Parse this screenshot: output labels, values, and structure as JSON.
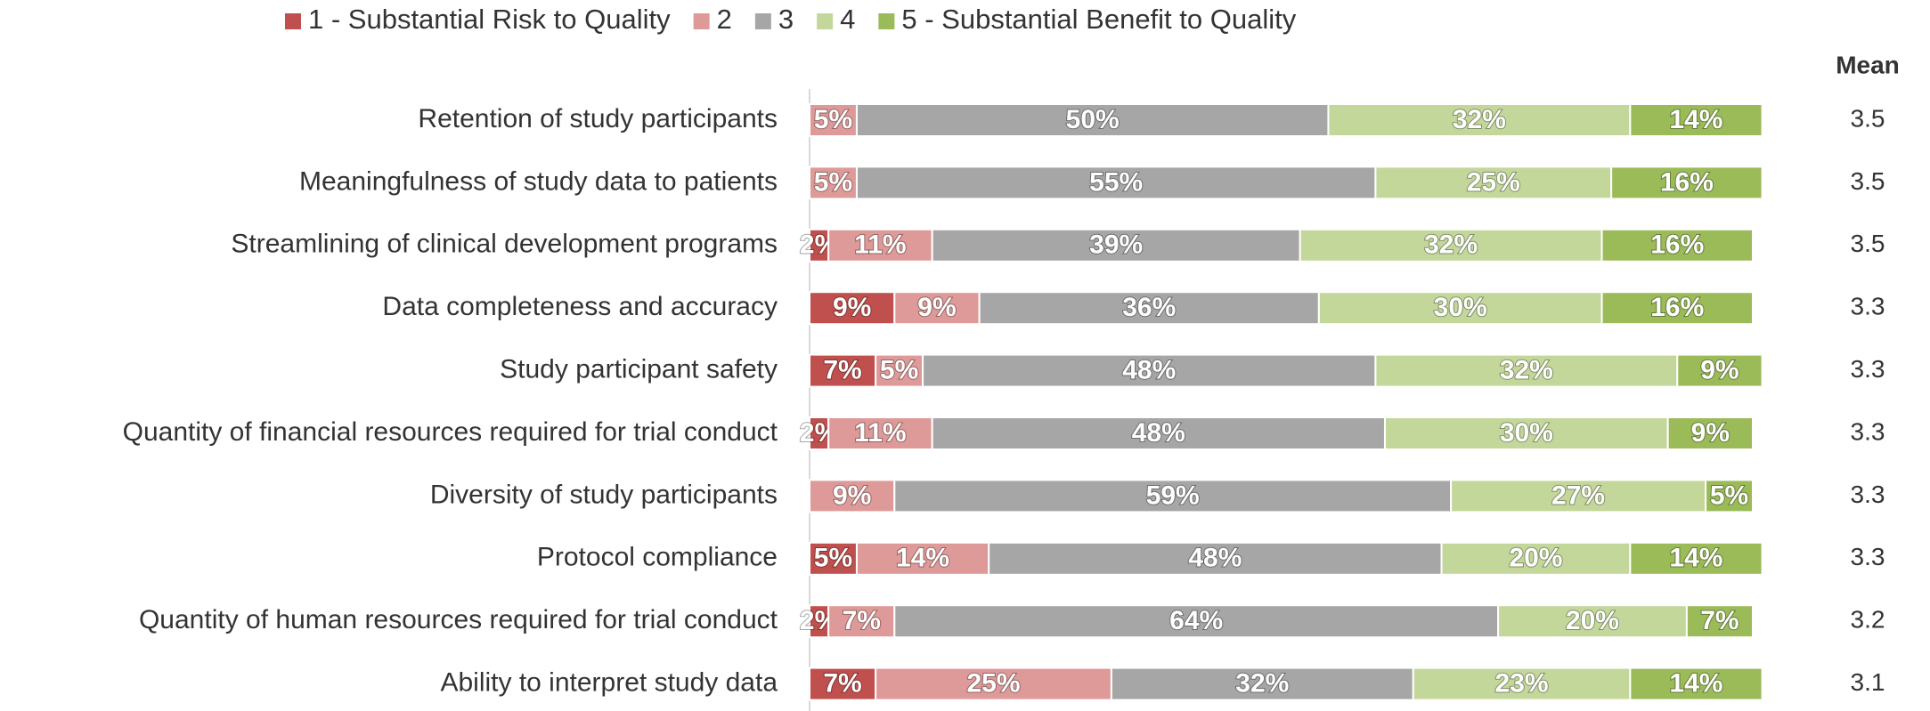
{
  "chart_data": {
    "type": "stacked_barh",
    "categories": [
      "Retention of study participants",
      "Meaningfulness of study data to patients",
      "Streamlining of clinical development programs",
      "Data completeness and accuracy",
      "Study participant safety",
      "Quantity of financial resources required for trial conduct",
      "Diversity of study participants",
      "Protocol compliance",
      "Quantity of human resources required for trial conduct",
      "Ability to interpret study data"
    ],
    "series": [
      {
        "name": "1 - Substantial Risk to Quality",
        "color": "#c0504d",
        "values": [
          null,
          null,
          2,
          9,
          7,
          2,
          null,
          5,
          2,
          7
        ],
        "value_labels": [
          null,
          null,
          "2%",
          "9%",
          "7%",
          "2%",
          null,
          "5%",
          "2%",
          "7%"
        ]
      },
      {
        "name": "2",
        "color": "#dd9a98",
        "values": [
          5,
          5,
          11,
          9,
          5,
          11,
          9,
          14,
          7,
          25
        ],
        "value_labels": [
          "5%",
          "5%",
          "11%",
          "9%",
          "5%",
          "11%",
          "9%",
          "14%",
          "7%",
          "25%"
        ]
      },
      {
        "name": "3",
        "color": "#a6a6a6",
        "values": [
          50,
          55,
          39,
          36,
          48,
          48,
          59,
          48,
          64,
          32
        ],
        "value_labels": [
          "50%",
          "55%",
          "39%",
          "36%",
          "48%",
          "48%",
          "59%",
          "48%",
          "64%",
          "32%"
        ]
      },
      {
        "name": "4",
        "color": "#c4d79b",
        "values": [
          32,
          25,
          32,
          30,
          32,
          30,
          27,
          20,
          20,
          23
        ],
        "value_labels": [
          "32%",
          "25%",
          "32%",
          "30%",
          "32%",
          "30%",
          "27%",
          "20%",
          "20%",
          "23%"
        ]
      },
      {
        "name": "5 - Substantial Benefit to Quality",
        "color": "#9bbb59",
        "values": [
          14,
          16,
          16,
          16,
          9,
          9,
          5,
          14,
          7,
          14
        ],
        "value_labels": [
          "14%",
          "16%",
          "16%",
          "16%",
          "9%",
          "9%",
          "5%",
          "14%",
          "7%",
          "14%"
        ]
      }
    ],
    "mean_header": "Mean",
    "means": [
      "3.5",
      "3.5",
      "3.5",
      "3.3",
      "3.3",
      "3.3",
      "3.3",
      "3.3",
      "3.2",
      "3.1"
    ],
    "xlim": [
      0,
      100
    ],
    "legend": "top"
  }
}
